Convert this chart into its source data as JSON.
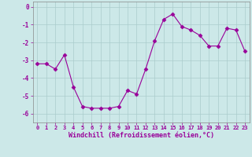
{
  "x": [
    0,
    1,
    2,
    3,
    4,
    5,
    6,
    7,
    8,
    9,
    10,
    11,
    12,
    13,
    14,
    15,
    16,
    17,
    18,
    19,
    20,
    21,
    22,
    23
  ],
  "y": [
    -3.2,
    -3.2,
    -3.5,
    -2.7,
    -4.5,
    -5.6,
    -5.7,
    -5.7,
    -5.7,
    -5.6,
    -4.7,
    -4.9,
    -3.5,
    -1.9,
    -0.7,
    -0.4,
    -1.1,
    -1.3,
    -1.6,
    -2.2,
    -2.2,
    -1.2,
    -1.3,
    -2.5
  ],
  "line_color": "#990099",
  "marker": "D",
  "marker_size": 2.5,
  "bg_color": "#cce8e8",
  "grid_color": "#aacccc",
  "xlabel": "Windchill (Refroidissement éolien,°C)",
  "xlabel_color": "#990099",
  "tick_color": "#990099",
  "ylim": [
    -6.5,
    0.3
  ],
  "xlim": [
    -0.5,
    23.5
  ],
  "yticks": [
    0,
    -1,
    -2,
    -3,
    -4,
    -5,
    -6
  ],
  "xticks": [
    0,
    1,
    2,
    3,
    4,
    5,
    6,
    7,
    8,
    9,
    10,
    11,
    12,
    13,
    14,
    15,
    16,
    17,
    18,
    19,
    20,
    21,
    22,
    23
  ]
}
